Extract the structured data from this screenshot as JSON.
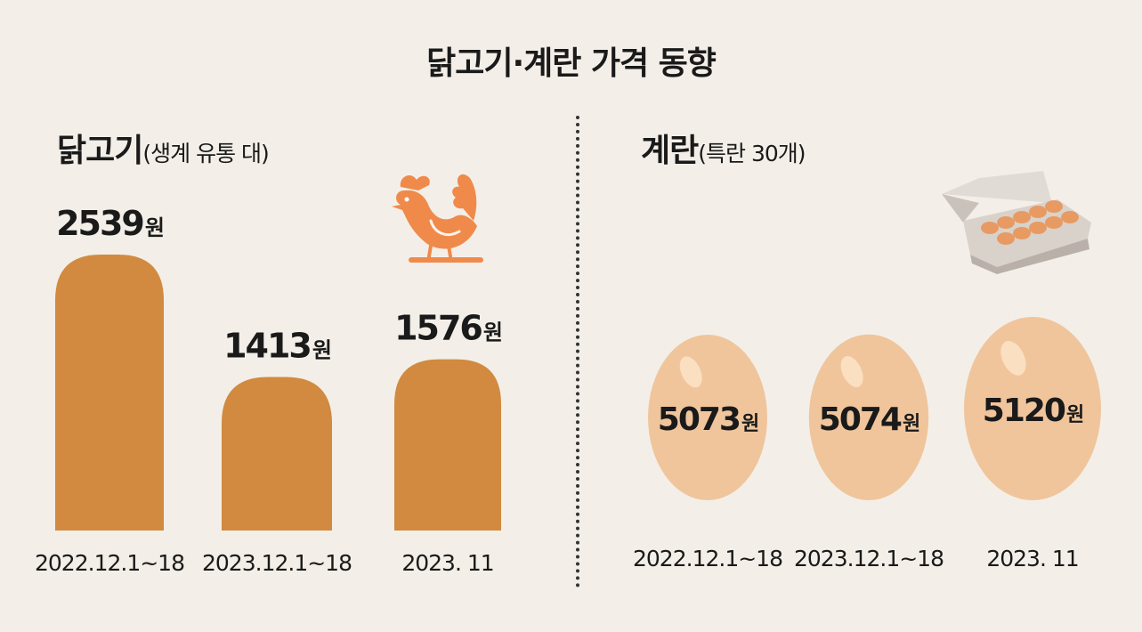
{
  "title": "닭고기·계란 가격 동향",
  "colors": {
    "background": "#f3efe8",
    "bar": "#d18a40",
    "egg": "#f0c59c",
    "egg_highlight": "#fbe3c8",
    "chicken_icon": "#f08a4b"
  },
  "icons": [
    "chicken-icon",
    "egg-carton-icon"
  ],
  "chart_data": [
    {
      "type": "bar",
      "title": "닭고기",
      "subtitle": "(생계 유통 대)",
      "categories": [
        "2022.12.1~18",
        "2023.12.1~18",
        "2023. 11"
      ],
      "values": [
        2539,
        1413,
        1576
      ],
      "labels": [
        "2539",
        "1413",
        "1576"
      ],
      "unit": "원"
    },
    {
      "type": "bar",
      "title": "계란",
      "subtitle": "(특란 30개)",
      "categories": [
        "2022.12.1~18",
        "2023.12.1~18",
        "2023. 11"
      ],
      "values": [
        5073,
        5074,
        5120
      ],
      "labels": [
        "5073",
        "5074",
        "5120"
      ],
      "unit": "원"
    }
  ]
}
